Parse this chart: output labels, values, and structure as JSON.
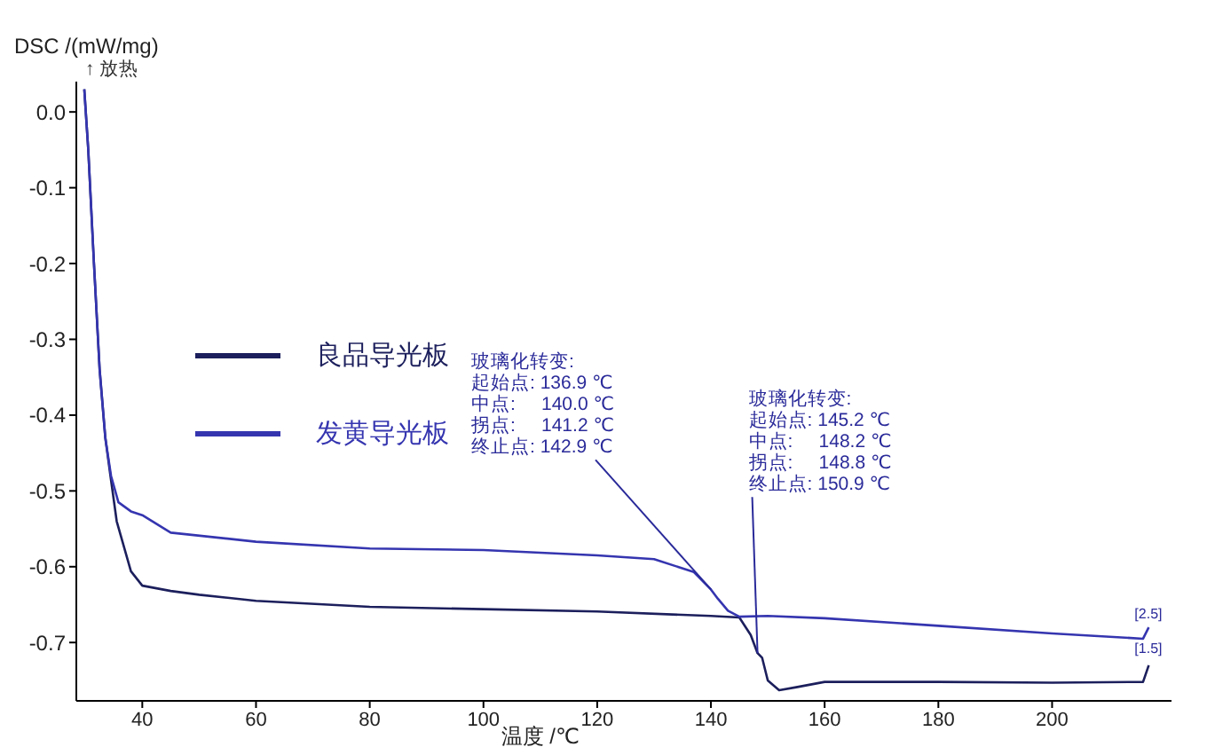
{
  "chart_data": {
    "type": "line",
    "xlabel": "温度 /℃",
    "ylabel": "DSC /(mW/mg)",
    "xlim": [
      28.4,
      221
    ],
    "ylim": [
      -0.777,
      0.04
    ],
    "xticks": [
      40,
      60,
      80,
      100,
      120,
      140,
      160,
      180,
      200
    ],
    "yticks": [
      {
        "value": 0,
        "label": "0.0"
      },
      -0.1,
      -0.2,
      -0.3,
      -0.4,
      -0.5,
      -0.6,
      -0.7
    ],
    "legend": "left",
    "marker": "none",
    "line_style": "solid",
    "series": [
      {
        "name": "良品导光板",
        "color": "#1c1f5c",
        "x": [
          29.8,
          30.5,
          31.5,
          32.5,
          33.5,
          34.4,
          35.5,
          38,
          40,
          45,
          50,
          60,
          80,
          100,
          120,
          140,
          145,
          147,
          148.2,
          149,
          150,
          152,
          155,
          160,
          180,
          200,
          216,
          217
        ],
        "values": [
          0.03,
          -0.05,
          -0.2,
          -0.34,
          -0.43,
          -0.48,
          -0.54,
          -0.606,
          -0.625,
          -0.632,
          -0.637,
          -0.645,
          -0.653,
          -0.656,
          -0.659,
          -0.665,
          -0.667,
          -0.69,
          -0.714,
          -0.72,
          -0.75,
          -0.763,
          -0.759,
          -0.752,
          -0.752,
          -0.753,
          -0.752,
          -0.73
        ]
      },
      {
        "name": "发黄导光板",
        "color": "#3535b0",
        "x": [
          29.8,
          30.5,
          31.5,
          32.5,
          33.5,
          34.5,
          35.8,
          38,
          40,
          45,
          60,
          80,
          100,
          120,
          130,
          137,
          140,
          141.2,
          143,
          145,
          150,
          160,
          180,
          200,
          216,
          217
        ],
        "values": [
          0.03,
          -0.05,
          -0.2,
          -0.34,
          -0.43,
          -0.48,
          -0.515,
          -0.527,
          -0.532,
          -0.555,
          -0.567,
          -0.576,
          -0.578,
          -0.585,
          -0.59,
          -0.607,
          -0.63,
          -0.642,
          -0.658,
          -0.666,
          -0.665,
          -0.668,
          -0.678,
          -0.688,
          -0.695,
          -0.68
        ]
      }
    ],
    "annotations": [
      "↑ 放热",
      {
        "text": "玻璃化转变:\n起始点: 136.9 ℃\n中点:     140.0 ℃\n拐点:     141.2 ℃\n终止点: 142.9 ℃",
        "x": 140,
        "y": -0.63
      },
      {
        "text": "玻璃化转变:\n起始点: 145.2 ℃\n中点:     148.2 ℃\n拐点:     148.8 ℃\n终止点: 150.9 ℃",
        "x": 148.2,
        "y": -0.714
      },
      {
        "text": "[2.5]",
        "x": 217,
        "y": -0.68
      },
      {
        "text": "[1.5]",
        "x": 217,
        "y": -0.73
      }
    ]
  }
}
